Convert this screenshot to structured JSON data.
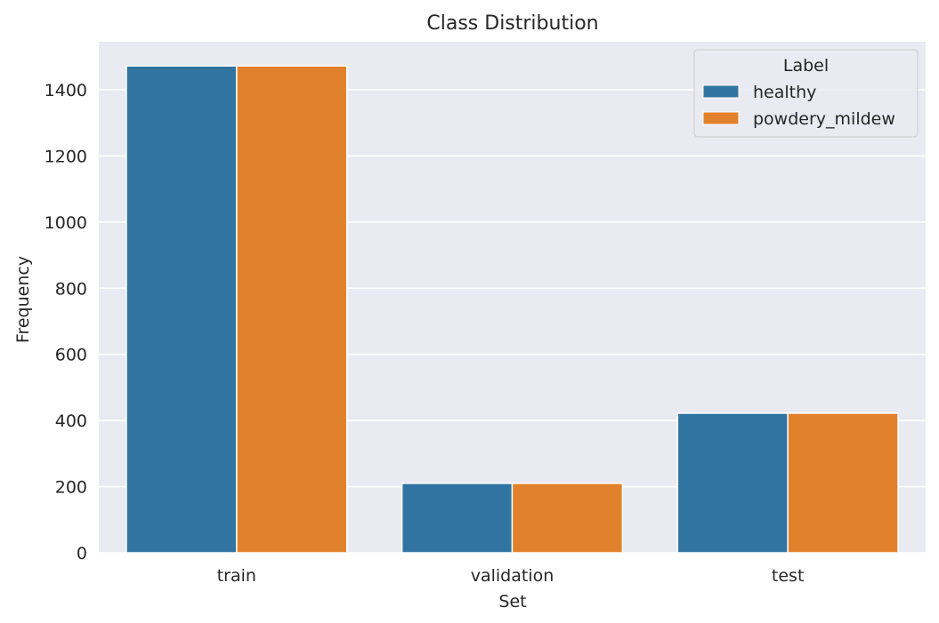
{
  "chart_data": {
    "type": "bar",
    "title": "Class Distribution",
    "xlabel": "Set",
    "ylabel": "Frequency",
    "categories": [
      "train",
      "validation",
      "test"
    ],
    "series": [
      {
        "name": "healthy",
        "values": [
          1472,
          210,
          422
        ],
        "color": "#3274a1"
      },
      {
        "name": "powdery_mildew",
        "values": [
          1472,
          210,
          422
        ],
        "color": "#e1812c"
      }
    ],
    "ylim": [
      0,
      1545
    ],
    "yticks": [
      0,
      200,
      400,
      600,
      800,
      1000,
      1200,
      1400
    ],
    "legend": {
      "title": "Label",
      "position": "top-right"
    },
    "grid": true,
    "background": "#eaeaf2"
  }
}
